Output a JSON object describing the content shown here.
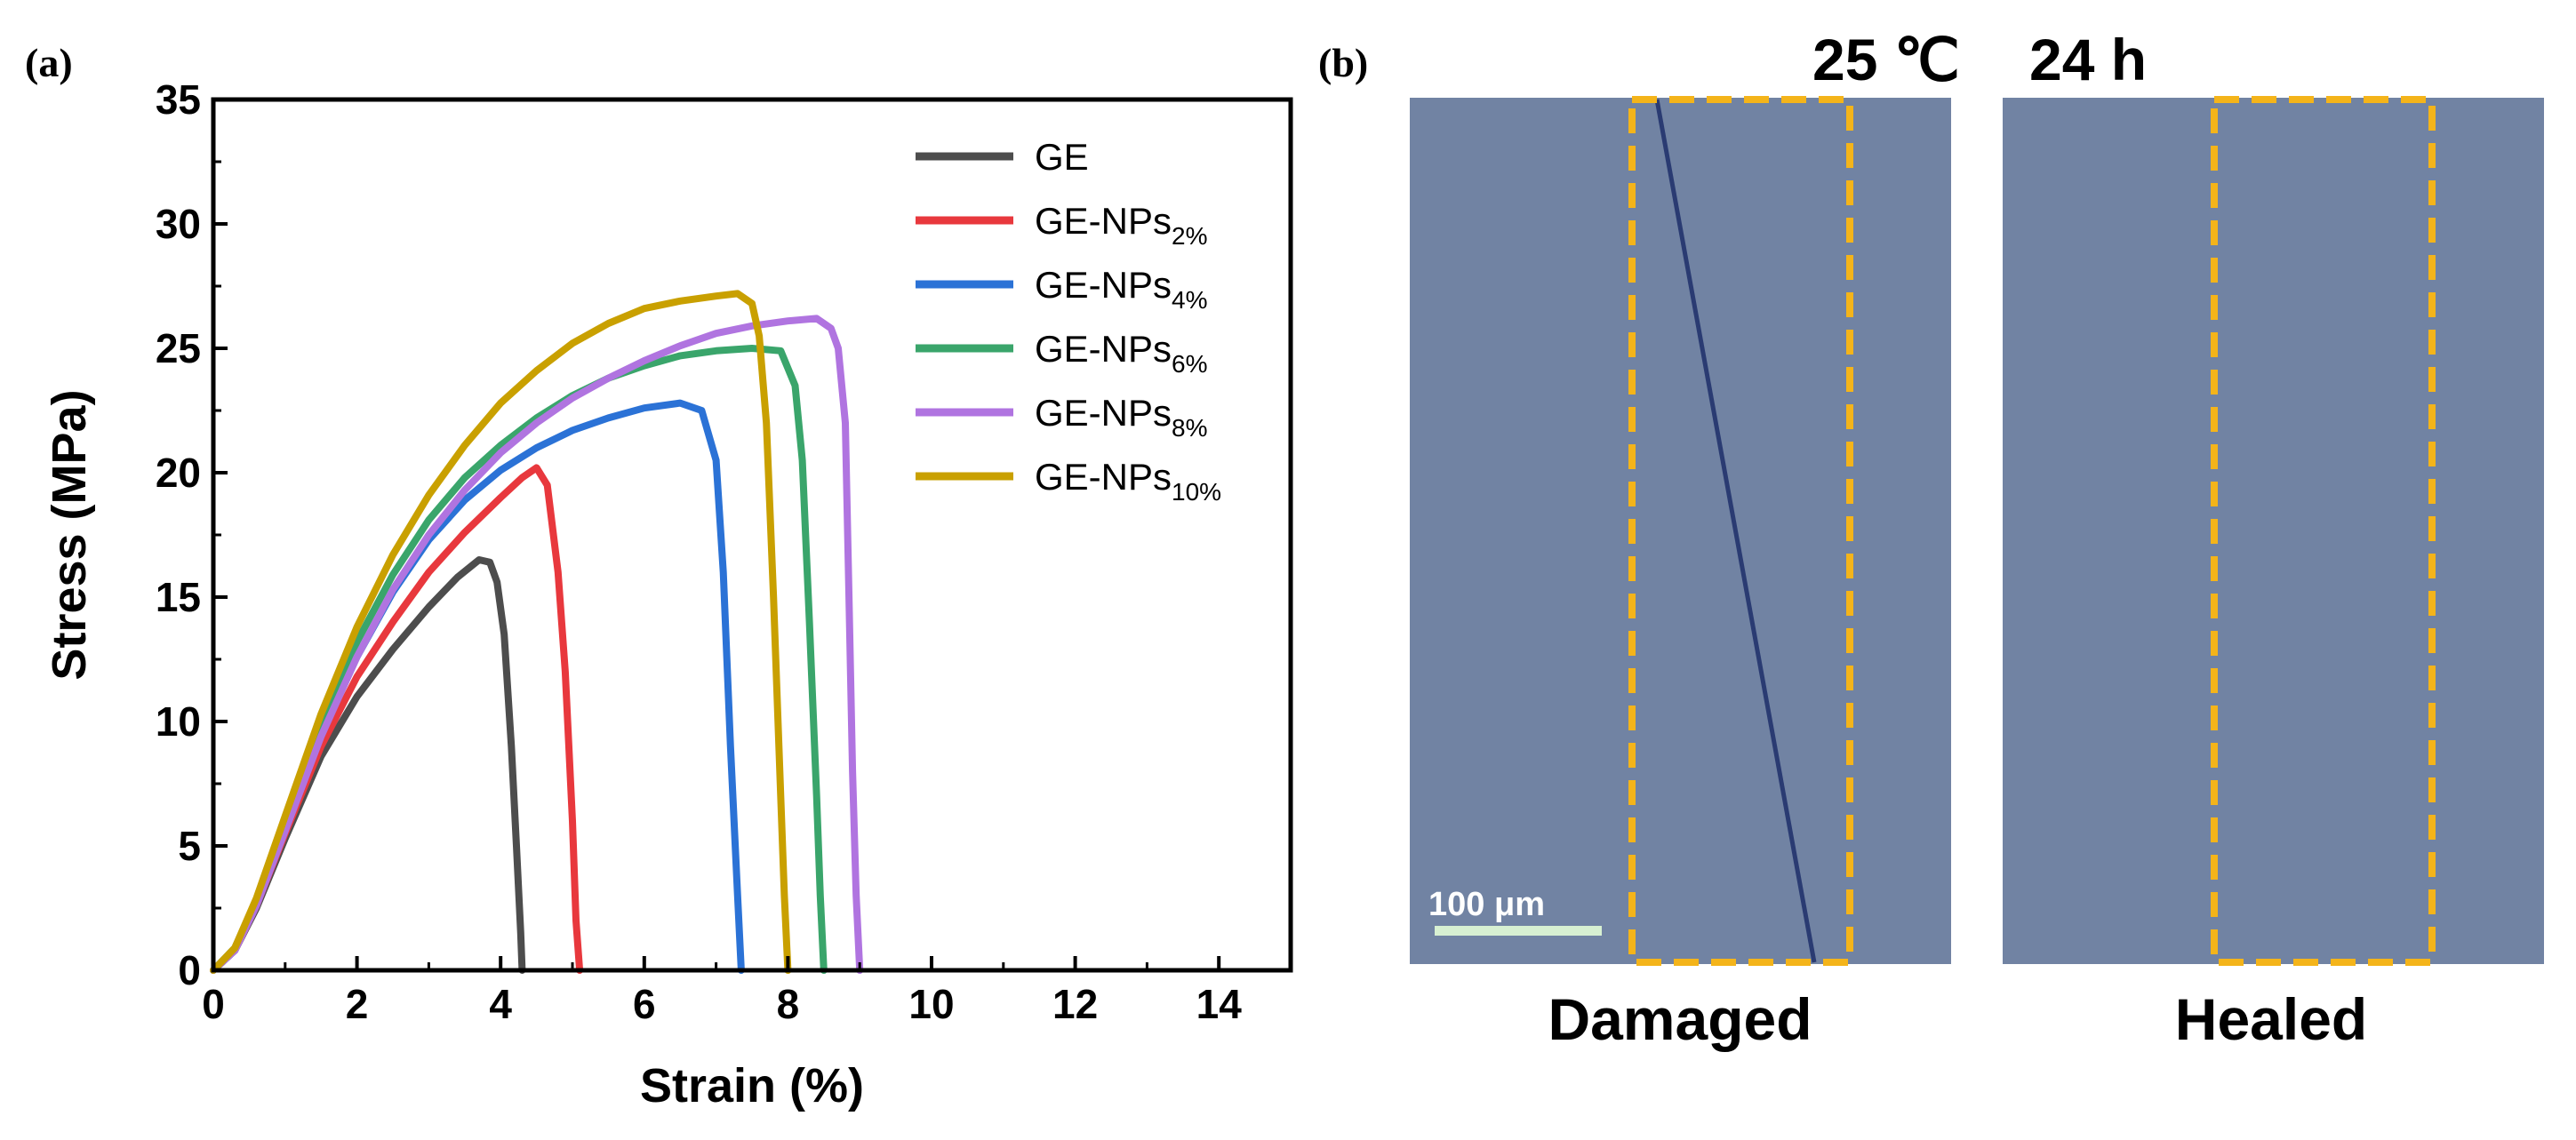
{
  "chart_data": {
    "type": "line",
    "title": "",
    "panel_label": "(a)",
    "xlabel": "Strain (%)",
    "ylabel": "Stress (MPa)",
    "xlim": [
      0,
      15
    ],
    "ylim": [
      0,
      35
    ],
    "xticks": [
      0,
      2,
      4,
      6,
      8,
      10,
      12,
      14
    ],
    "yticks": [
      0,
      5,
      10,
      15,
      20,
      25,
      30,
      35
    ],
    "grid": false,
    "legend_position": "top-right",
    "series": [
      {
        "name": "GE",
        "label_main": "GE",
        "label_sub": "",
        "color": "#4d4d4d",
        "x": [
          0,
          0.3,
          0.6,
          1.0,
          1.5,
          2.0,
          2.5,
          3.0,
          3.4,
          3.7,
          3.85,
          3.95,
          4.05,
          4.15,
          4.22,
          4.28,
          4.3
        ],
        "y": [
          0,
          0.8,
          2.5,
          5.3,
          8.6,
          11.0,
          12.9,
          14.6,
          15.8,
          16.5,
          16.4,
          15.6,
          13.5,
          9.0,
          5.0,
          1.5,
          0
        ]
      },
      {
        "name": "GE-NPs 2%",
        "label_main": "GE-NPs",
        "label_sub": "2%",
        "color": "#e8383d",
        "x": [
          0,
          0.3,
          0.6,
          1.0,
          1.5,
          2.0,
          2.5,
          3.0,
          3.5,
          4.0,
          4.3,
          4.5,
          4.65,
          4.8,
          4.9,
          5.0,
          5.05,
          5.1
        ],
        "y": [
          0,
          0.8,
          2.6,
          5.5,
          9.0,
          11.8,
          14.0,
          16.0,
          17.6,
          19.0,
          19.8,
          20.2,
          19.5,
          16.0,
          12.0,
          6.0,
          2.0,
          0
        ]
      },
      {
        "name": "GE-NPs 4%",
        "label_main": "GE-NPs",
        "label_sub": "4%",
        "color": "#2b72d6",
        "x": [
          0,
          0.3,
          0.6,
          1.0,
          1.5,
          2.0,
          2.5,
          3.0,
          3.5,
          4.0,
          4.5,
          5.0,
          5.5,
          6.0,
          6.5,
          6.8,
          7.0,
          7.1,
          7.2,
          7.3,
          7.35
        ],
        "y": [
          0,
          0.8,
          2.7,
          5.7,
          9.5,
          12.6,
          15.2,
          17.3,
          18.9,
          20.1,
          21.0,
          21.7,
          22.2,
          22.6,
          22.8,
          22.5,
          20.5,
          16.0,
          9.0,
          3.0,
          0
        ]
      },
      {
        "name": "GE-NPs 6%",
        "label_main": "GE-NPs",
        "label_sub": "6%",
        "color": "#3aa56b",
        "x": [
          0,
          0.3,
          0.6,
          1.0,
          1.5,
          2.0,
          2.5,
          3.0,
          3.5,
          4.0,
          4.5,
          5.0,
          5.5,
          6.0,
          6.5,
          7.0,
          7.5,
          7.9,
          8.1,
          8.2,
          8.3,
          8.4,
          8.45,
          8.5
        ],
        "y": [
          0,
          0.9,
          2.8,
          5.9,
          9.9,
          13.2,
          15.9,
          18.1,
          19.8,
          21.1,
          22.2,
          23.1,
          23.8,
          24.3,
          24.7,
          24.9,
          25.0,
          24.9,
          23.5,
          20.5,
          14.0,
          7.0,
          3.0,
          0
        ]
      },
      {
        "name": "GE-NPs 8%",
        "label_main": "GE-NPs",
        "label_sub": "8%",
        "color": "#b074e0",
        "x": [
          0,
          0.3,
          0.6,
          1.0,
          1.5,
          2.0,
          2.5,
          3.0,
          3.5,
          4.0,
          4.5,
          5.0,
          5.5,
          6.0,
          6.5,
          7.0,
          7.5,
          8.0,
          8.4,
          8.6,
          8.7,
          8.8,
          8.85,
          8.9,
          8.95,
          9.0
        ],
        "y": [
          0,
          0.8,
          2.6,
          5.6,
          9.4,
          12.6,
          15.3,
          17.5,
          19.3,
          20.8,
          22.0,
          23.0,
          23.8,
          24.5,
          25.1,
          25.6,
          25.9,
          26.1,
          26.2,
          25.8,
          25.0,
          22.0,
          15.0,
          8.0,
          3.0,
          0
        ]
      },
      {
        "name": "GE-NPs 10%",
        "label_main": "GE-NPs",
        "label_sub": "10%",
        "color": "#c9a000",
        "x": [
          0,
          0.3,
          0.6,
          1.0,
          1.5,
          2.0,
          2.5,
          3.0,
          3.5,
          4.0,
          4.5,
          5.0,
          5.5,
          6.0,
          6.5,
          7.0,
          7.3,
          7.5,
          7.6,
          7.7,
          7.8,
          7.9,
          7.95,
          8.0
        ],
        "y": [
          0,
          0.9,
          2.9,
          6.2,
          10.3,
          13.8,
          16.7,
          19.1,
          21.1,
          22.8,
          24.1,
          25.2,
          26.0,
          26.6,
          26.9,
          27.1,
          27.2,
          26.8,
          25.5,
          22.0,
          15.0,
          7.0,
          3.0,
          0
        ]
      }
    ]
  },
  "panel_b": {
    "panel_label": "(b)",
    "condition_temp": "25 ℃",
    "condition_time": "24 h",
    "scale_bar": "100 μm",
    "damaged_label": "Damaged",
    "healed_label": "Healed"
  },
  "colors": {
    "micro_bg": "#7183a3",
    "dashed_box": "#f4b41a",
    "scratch": "#1e2f6a",
    "scale_bar": "#d7f0d2"
  }
}
